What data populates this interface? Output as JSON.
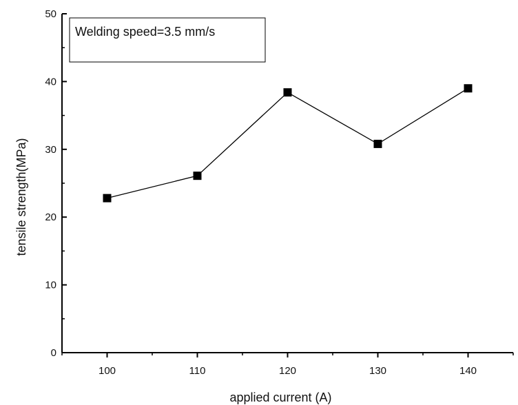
{
  "chart_data": {
    "type": "line",
    "x": [
      100,
      110,
      120,
      130,
      140
    ],
    "series": [
      {
        "values": [
          22.8,
          26.1,
          38.4,
          30.8,
          39.0
        ],
        "marker": "square",
        "color": "#000000"
      }
    ],
    "xlabel": "applied current (A)",
    "ylabel": "tensile strength(MPa)",
    "xticks": [
      "100",
      "110",
      "120",
      "130",
      "140"
    ],
    "yticks": [
      "0",
      "10",
      "20",
      "30",
      "40",
      "50"
    ],
    "xlim": [
      95,
      145
    ],
    "ylim": [
      0,
      50
    ],
    "annotation": "Welding speed=3.5 mm/s",
    "grid": false,
    "legend": false
  }
}
